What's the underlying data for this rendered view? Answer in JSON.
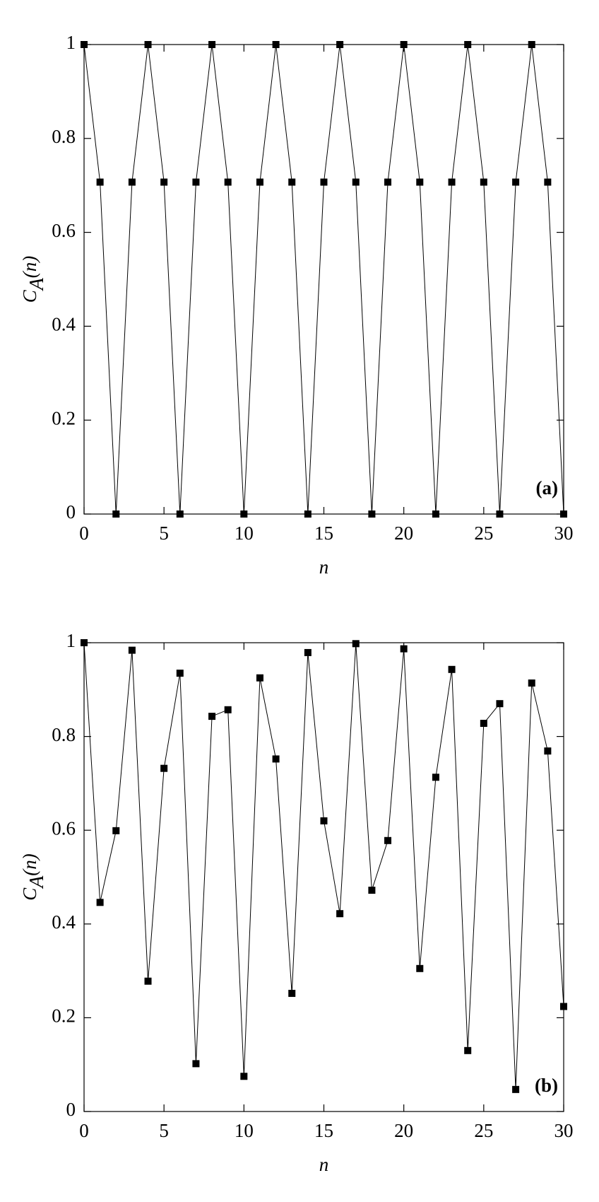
{
  "chart_data": [
    {
      "type": "line",
      "label": "(a)",
      "xlabel": "n",
      "ylabel": [
        "C",
        "A",
        "(n)"
      ],
      "x": [
        0,
        1,
        2,
        3,
        4,
        5,
        6,
        7,
        8,
        9,
        10,
        11,
        12,
        13,
        14,
        15,
        16,
        17,
        18,
        19,
        20,
        21,
        22,
        23,
        24,
        25,
        26,
        27,
        28,
        29,
        30
      ],
      "series": [
        {
          "color": "#000000",
          "values": [
            1,
            0.707,
            0,
            0.707,
            1,
            0.707,
            0,
            0.707,
            1,
            0.707,
            0,
            0.707,
            1,
            0.707,
            0,
            0.707,
            1,
            0.707,
            0,
            0.707,
            1,
            0.707,
            0,
            0.707,
            1,
            0.707,
            0,
            0.707,
            1,
            0.707,
            0
          ]
        }
      ],
      "xlim": [
        0,
        30
      ],
      "xticks": [
        0,
        5,
        10,
        15,
        20,
        25,
        30
      ],
      "ylim": [
        0,
        1
      ],
      "yticks": [
        0,
        0.2,
        0.4,
        0.6,
        0.8,
        1
      ]
    },
    {
      "type": "line",
      "label": "(b)",
      "xlabel": "n",
      "ylabel": [
        "C",
        "A",
        "(n)"
      ],
      "x": [
        0,
        1,
        2,
        3,
        4,
        5,
        6,
        7,
        8,
        9,
        10,
        11,
        12,
        13,
        14,
        15,
        16,
        17,
        18,
        19,
        20,
        21,
        22,
        23,
        24,
        25,
        26,
        27,
        28,
        29,
        30
      ],
      "series": [
        {
          "color": "#000000",
          "values": [
            1,
            0.446,
            0.599,
            0.984,
            0.278,
            0.732,
            0.935,
            0.102,
            0.843,
            0.857,
            0.075,
            0.925,
            0.752,
            0.252,
            0.979,
            0.62,
            0.422,
            0.998,
            0.472,
            0.578,
            0.987,
            0.305,
            0.713,
            0.943,
            0.13,
            0.828,
            0.87,
            0.047,
            0.914,
            0.769,
            0.224
          ]
        }
      ],
      "xlim": [
        0,
        30
      ],
      "xticks": [
        0,
        5,
        10,
        15,
        20,
        25,
        30
      ],
      "ylim": [
        0,
        1
      ],
      "yticks": [
        0,
        0.2,
        0.4,
        0.6,
        0.8,
        1
      ]
    }
  ]
}
